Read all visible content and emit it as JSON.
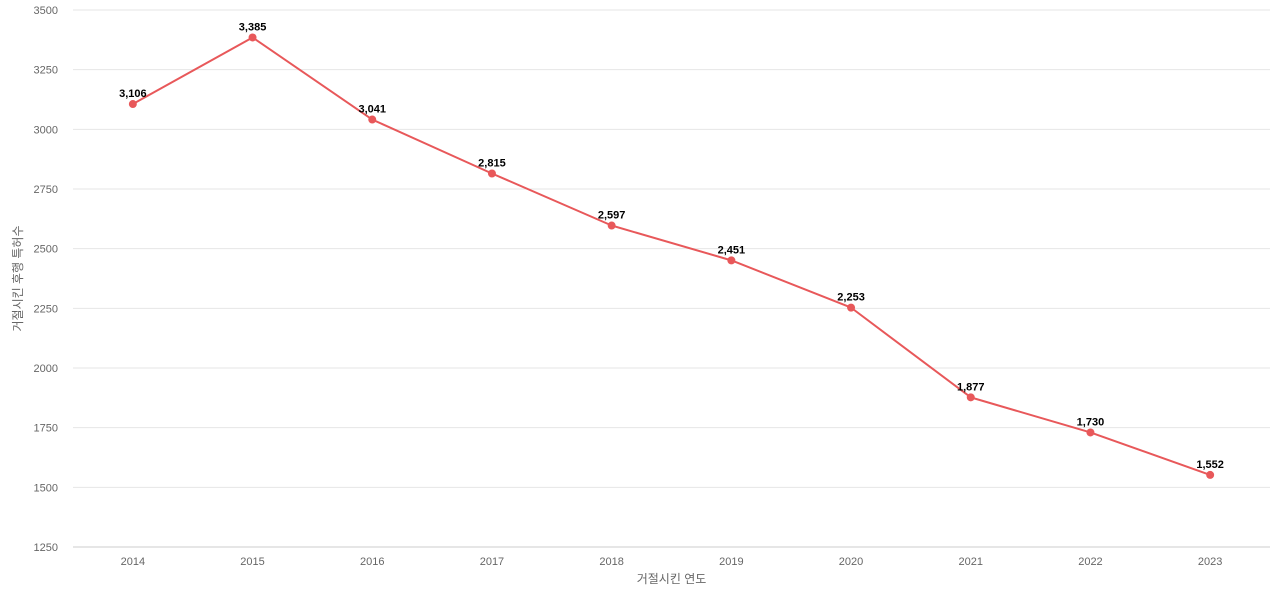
{
  "chart_data": {
    "type": "line",
    "categories": [
      "2014",
      "2015",
      "2016",
      "2017",
      "2018",
      "2019",
      "2020",
      "2021",
      "2022",
      "2023"
    ],
    "series": [
      {
        "values": [
          3106,
          3385,
          3041,
          2815,
          2597,
          2451,
          2253,
          1877,
          1730,
          1552
        ],
        "labels": [
          "3,106",
          "3,385",
          "3,041",
          "2,815",
          "2,597",
          "2,451",
          "2,253",
          "1,877",
          "1,730",
          "1,552"
        ],
        "color": "#e8585a"
      }
    ],
    "xlabel": "거절시킨 연도",
    "ylabel": "거절시킨 후행 특허수",
    "ylim": [
      1250,
      3500
    ],
    "yticks": [
      1250,
      1500,
      1750,
      2000,
      2250,
      2500,
      2750,
      3000,
      3250,
      3500
    ],
    "ytick_labels": [
      "1250",
      "1500",
      "1750",
      "2000",
      "2250",
      "2500",
      "2750",
      "3000",
      "3250",
      "3500"
    ],
    "grid": true,
    "legend": "none",
    "colors": {
      "line": "#e8585a",
      "grid": "#e6e6e6",
      "tick_text": "#666666",
      "label_text": "#000000"
    }
  }
}
